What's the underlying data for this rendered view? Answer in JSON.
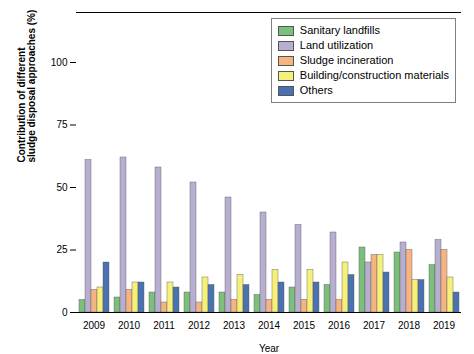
{
  "chart_data": {
    "type": "bar",
    "categories": [
      "2009",
      "2010",
      "2011",
      "2012",
      "2013",
      "2014",
      "2015",
      "2016",
      "2017",
      "2018",
      "2019"
    ],
    "series": [
      {
        "name": "Sanitary landfills",
        "color": "#7bbf7b",
        "values": [
          5,
          6,
          8,
          8,
          8,
          7,
          10,
          11,
          26,
          24,
          19
        ]
      },
      {
        "name": "Land utilization",
        "color": "#b8aed0",
        "values": [
          61,
          62,
          58,
          52,
          46,
          40,
          35,
          32,
          20,
          28,
          29
        ]
      },
      {
        "name": "Sludge incineration",
        "color": "#f5b482",
        "values": [
          9,
          9,
          4,
          4,
          5,
          5,
          5,
          5,
          23,
          25,
          25
        ]
      },
      {
        "name": "Building/construction materials",
        "color": "#f5f07a",
        "values": [
          10,
          12,
          12,
          14,
          15,
          17,
          17,
          20,
          23,
          13,
          14
        ]
      },
      {
        "name": "Others",
        "color": "#4a72b0",
        "values": [
          20,
          12,
          10,
          11,
          11,
          12,
          12,
          15,
          16,
          13,
          8
        ]
      }
    ],
    "xlabel": "Year",
    "ylabel": "Contribution of different\nsludge disposal approaches (%)",
    "ylim": [
      0,
      120
    ],
    "yticks": [
      0,
      25,
      50,
      75,
      100
    ],
    "legend": "upper right"
  }
}
